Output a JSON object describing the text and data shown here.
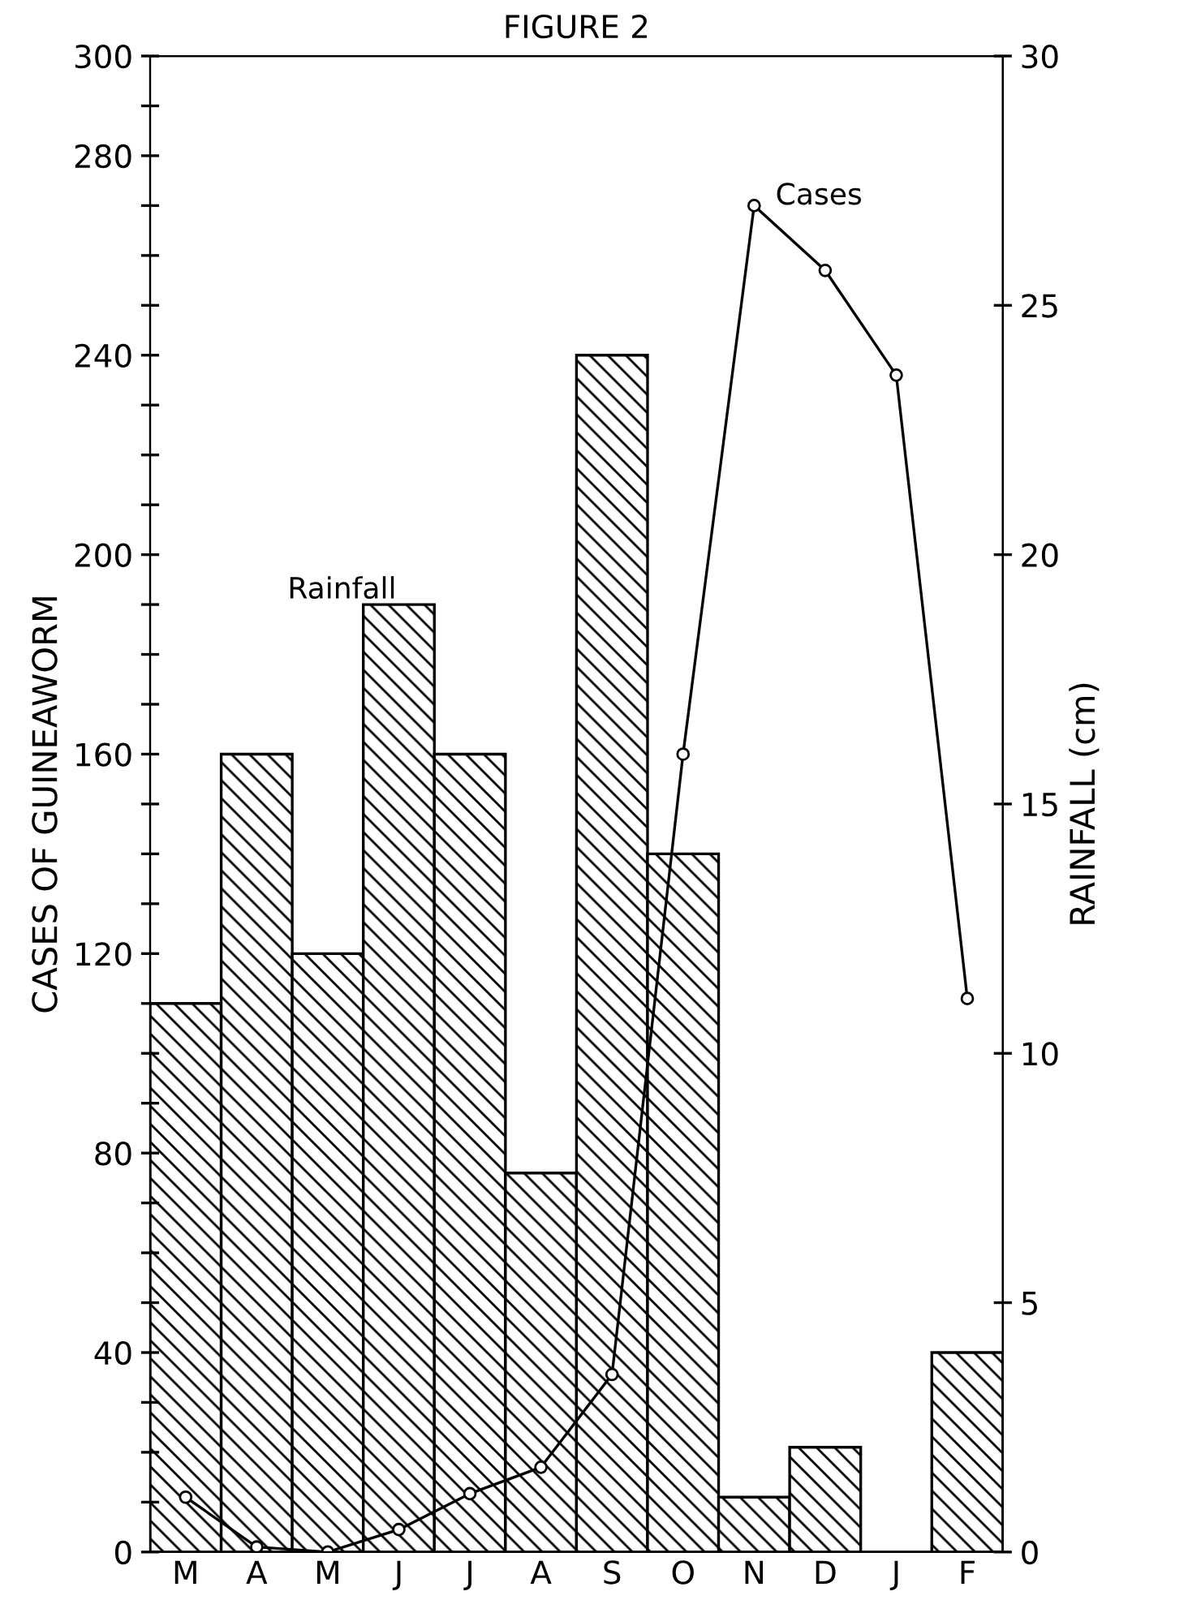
{
  "chart_data": {
    "type": "bar",
    "title": "FIGURE 2",
    "categories": [
      "M",
      "A",
      "M",
      "J",
      "J",
      "A",
      "S",
      "O",
      "N",
      "D",
      "J",
      "F"
    ],
    "ylabel": "CASES OF GUINEAWORM",
    "y2label": "RAINFALL (cm)",
    "series": [
      {
        "name": "Rainfall",
        "axis": "y2",
        "color": "#000000",
        "values": [
          11,
          16,
          12,
          19,
          16,
          7.6,
          24,
          14,
          1.1,
          2.1,
          0,
          4.0
        ]
      },
      {
        "name": "Cases",
        "type": "line",
        "color": "#000000",
        "marker": "circle",
        "line_style": "solid",
        "values": [
          11,
          1,
          0,
          4.5,
          11.7,
          17,
          35.6,
          160,
          270,
          257,
          236,
          111
        ]
      }
    ],
    "ylim": [
      0,
      300
    ],
    "yticks": [
      0,
      {
        "value": 10,
        "label": null
      },
      {
        "value": 20,
        "label": null
      },
      {
        "value": 30,
        "label": null
      },
      40,
      {
        "value": 50,
        "label": null
      },
      {
        "value": 60,
        "label": null
      },
      {
        "value": 70,
        "label": null
      },
      80,
      {
        "value": 90,
        "label": null
      },
      {
        "value": 100,
        "label": null
      },
      {
        "value": 110,
        "label": null
      },
      120,
      {
        "value": 130,
        "label": null
      },
      {
        "value": 140,
        "label": null
      },
      {
        "value": 150,
        "label": null
      },
      160,
      {
        "value": 170,
        "label": null
      },
      {
        "value": 180,
        "label": null
      },
      {
        "value": 190,
        "label": null
      },
      200,
      {
        "value": 210,
        "label": null
      },
      {
        "value": 220,
        "label": null
      },
      {
        "value": 230,
        "label": null
      },
      240,
      {
        "value": 250,
        "label": null
      },
      {
        "value": 260,
        "label": null
      },
      {
        "value": 270,
        "label": null
      },
      280,
      {
        "value": 290,
        "label": null
      },
      300
    ],
    "y2lim": [
      0,
      30
    ],
    "y2ticks": [
      0,
      5,
      10,
      15,
      20,
      25,
      30
    ],
    "grid": false,
    "legend": false
  }
}
